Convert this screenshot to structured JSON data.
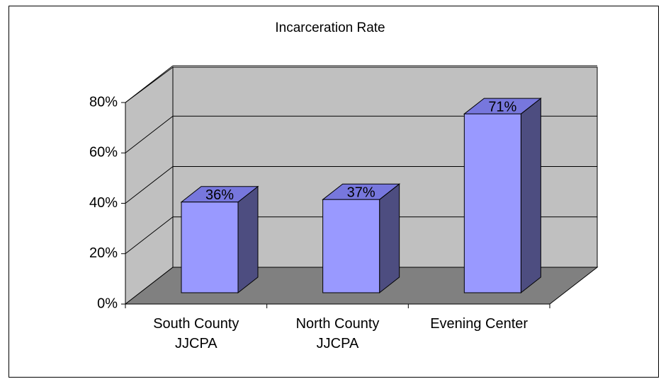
{
  "chart_data": {
    "type": "bar3d",
    "title": "Incarceration Rate",
    "categories": [
      "South County JJCPA",
      "North County JJCPA",
      "Evening Center"
    ],
    "values": [
      36,
      37,
      71
    ],
    "value_labels": [
      "36%",
      "37%",
      "71%"
    ],
    "color": "#9999ff",
    "ylim": [
      0,
      80
    ],
    "yticks": [
      {
        "value": 0,
        "label": "0%"
      },
      {
        "value": 20,
        "label": "20%"
      },
      {
        "value": 40,
        "label": "40%"
      },
      {
        "value": 60,
        "label": "60%"
      },
      {
        "value": 80,
        "label": "80%"
      }
    ],
    "grid": true
  }
}
